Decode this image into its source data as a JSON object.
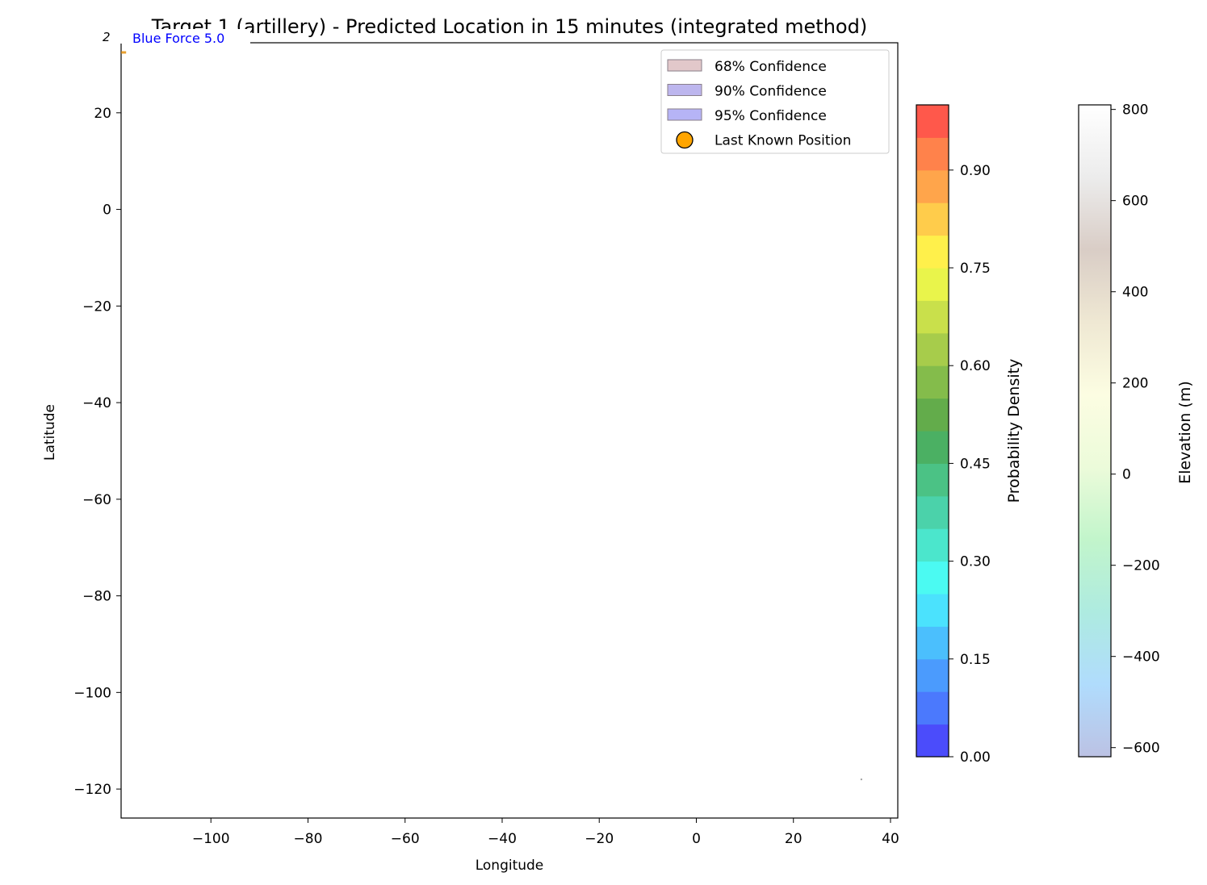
{
  "chart_data": {
    "type": "heatmap",
    "title": "Target 1 (artillery) - Predicted Location in 15 minutes (integrated method)",
    "xlabel": "Longitude",
    "ylabel": "Latitude",
    "xlim": [
      -118.5,
      41.5
    ],
    "ylim": [
      -126,
      34.5
    ],
    "xticks": [
      -100,
      -80,
      -60,
      -40,
      -20,
      0,
      20,
      40
    ],
    "yticks": [
      -120,
      -100,
      -80,
      -60,
      -40,
      -20,
      0,
      20
    ],
    "grid": false,
    "legend": {
      "position": "top-right",
      "entries": [
        {
          "label": "68% Confidence",
          "color": "#e2c8ca",
          "kind": "patch"
        },
        {
          "label": "90% Confidence",
          "color": "#bdb6ee",
          "kind": "patch"
        },
        {
          "label": "95% Confidence",
          "color": "#b6b4f6",
          "kind": "patch"
        },
        {
          "label": "Last Known Position",
          "color": "#ffa500",
          "kind": "marker"
        }
      ]
    },
    "annotations": [
      {
        "text": "Blue Force 5.0",
        "color": "#0000ff"
      },
      {
        "text": "2",
        "color": "#000000"
      }
    ],
    "points": [
      {
        "name": "last-known-position",
        "x": -118.3,
        "y": 32.5
      },
      {
        "name": "stray-mark",
        "x": 34,
        "y": -118
      }
    ],
    "colorbars": [
      {
        "label": "Probability Density",
        "min": 0,
        "max": 1.0,
        "ticks": [
          0.0,
          0.15,
          0.3,
          0.45,
          0.6,
          0.75,
          0.9
        ],
        "tick_labels": [
          "0.00",
          "0.15",
          "0.30",
          "0.45",
          "0.60",
          "0.75",
          "0.90"
        ],
        "bands": [
          "#4b4cfb",
          "#4b79fd",
          "#4b9bfd",
          "#4bbffd",
          "#4be2fd",
          "#4bfaf2",
          "#4be6cc",
          "#4bd2aa",
          "#4bc285",
          "#4bb063",
          "#63ac4b",
          "#84bc4b",
          "#a7cc4b",
          "#c9e04b",
          "#e9f44b",
          "#fff04b",
          "#ffcc4b",
          "#ffa54b",
          "#ff824b",
          "#ff584b"
        ]
      },
      {
        "label": "Elevation (m)",
        "min": -620,
        "max": 810,
        "ticks": [
          -600,
          -400,
          -200,
          0,
          200,
          400,
          600,
          800
        ],
        "tick_labels": [
          "−600",
          "−400",
          "−200",
          "0",
          "200",
          "400",
          "600",
          "800"
        ],
        "gradient": [
          "#bcc2e4",
          "#b0dcfd",
          "#aeebe0",
          "#c2f5cb",
          "#ecfbda",
          "#fcfde2",
          "#efe8d3",
          "#d9cdc6",
          "#ececec",
          "#ffffff"
        ]
      }
    ]
  }
}
